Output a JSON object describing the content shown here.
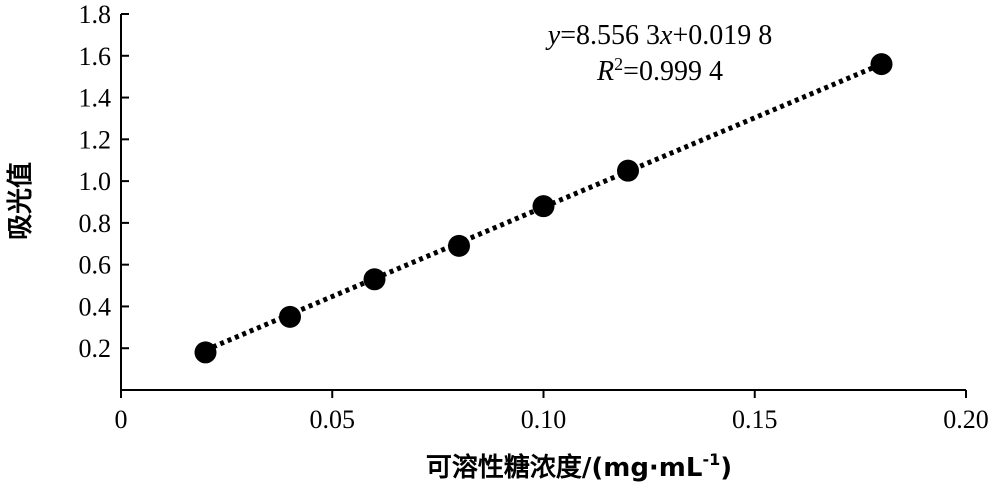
{
  "chart_data": {
    "type": "scatter",
    "title": "",
    "xlabel": "可溶性糖浓度/(mg·mL",
    "xlabel_sup": "-1",
    "xlabel_close": ")",
    "ylabel": "吸光值",
    "xlim": [
      0,
      0.2
    ],
    "ylim": [
      0,
      1.8
    ],
    "xticks": [
      0,
      0.05,
      0.1,
      0.15,
      0.2
    ],
    "xtick_labels": [
      "0",
      "0.05",
      "0.10",
      "0.15",
      "0.20"
    ],
    "yticks": [
      0.2,
      0.4,
      0.6,
      0.8,
      1.0,
      1.2,
      1.4,
      1.6,
      1.8
    ],
    "ytick_labels": [
      "0.2",
      "0.4",
      "0.6",
      "0.8",
      "1.0",
      "1.2",
      "1.4",
      "1.6",
      "1.8"
    ],
    "grid": false,
    "series": [
      {
        "x": [
          0.02,
          0.04,
          0.06,
          0.08,
          0.1,
          0.12,
          0.18
        ],
        "y": [
          0.18,
          0.35,
          0.53,
          0.69,
          0.88,
          1.05,
          1.56
        ]
      }
    ],
    "trendline": {
      "slope": 8.5563,
      "intercept": 0.0198,
      "x_range": [
        0.02,
        0.18
      ],
      "style": "dotted"
    },
    "annotations": {
      "equation": {
        "y": "y",
        "eq1": "=8.556 3",
        "x": "x",
        "eq2": "+0.019 8"
      },
      "r2": {
        "r": "R",
        "sup": "2",
        "rest": "=0.999 4"
      }
    },
    "colors": {
      "marker": "#000000",
      "line": "#000000"
    }
  }
}
